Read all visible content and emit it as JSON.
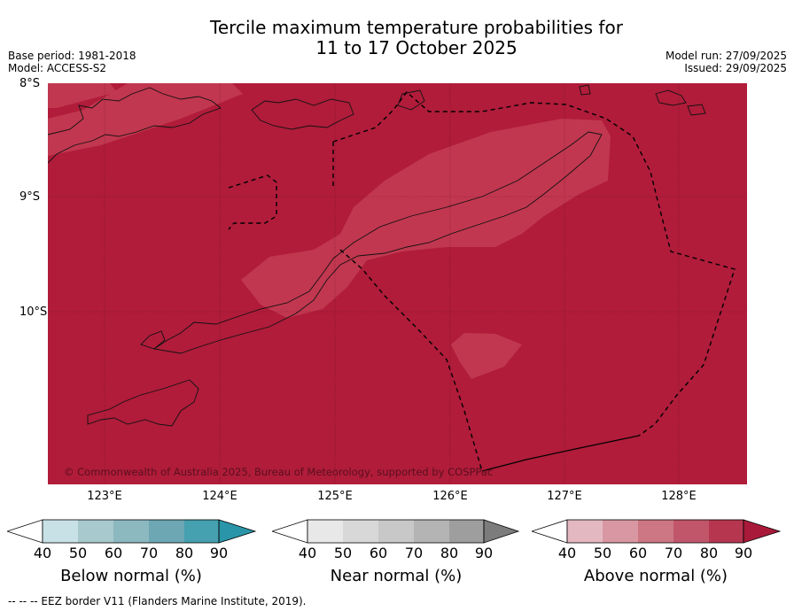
{
  "title_line1": "Tercile maximum temperature probabilities for",
  "title_line2": "11 to 17 October 2025",
  "base_period": "Base period: 1981-2018",
  "model": "Model: ACCESS-S2",
  "model_run": "Model run: 27/09/2025",
  "issued": "Issued: 29/09/2025",
  "latitude_labels": [
    "8°S",
    "9°S",
    "10°S"
  ],
  "longitude_labels": [
    "123°E",
    "124°E",
    "125°E",
    "126°E",
    "127°E",
    "128°E"
  ],
  "copyright": "© Commonwealth of Australia 2025, Bureau of Meteorology, supported by COSPPac",
  "footnote": "--  --  -- EEZ border V11 (Flanders Marine Institute, 2019).",
  "colors": {
    "above_80_90": "#b51d3a",
    "above_70_80": "#c1374f",
    "ocean_base": "#b01c3a"
  },
  "colorbars": [
    {
      "title": "Below normal (%)",
      "ticks": [
        "40",
        "50",
        "60",
        "70",
        "80",
        "90"
      ],
      "colors": [
        "#ffffff",
        "#c8e1e7",
        "#a8c9ce",
        "#8cb8c0",
        "#6ca7b3",
        "#45a0b0",
        "#2a95a8"
      ]
    },
    {
      "title": "Near normal (%)",
      "ticks": [
        "40",
        "50",
        "60",
        "70",
        "80",
        "90"
      ],
      "colors": [
        "#ffffff",
        "#e8e8e8",
        "#d8d8d8",
        "#c8c8c8",
        "#b4b4b4",
        "#9e9e9e",
        "#7c7c7c"
      ]
    },
    {
      "title": "Above normal (%)",
      "ticks": [
        "40",
        "50",
        "60",
        "70",
        "80",
        "90"
      ],
      "colors": [
        "#ffffff",
        "#e4b8c0",
        "#d897a2",
        "#cc7783",
        "#c1566a",
        "#b63650",
        "#a91a3a"
      ]
    }
  ]
}
